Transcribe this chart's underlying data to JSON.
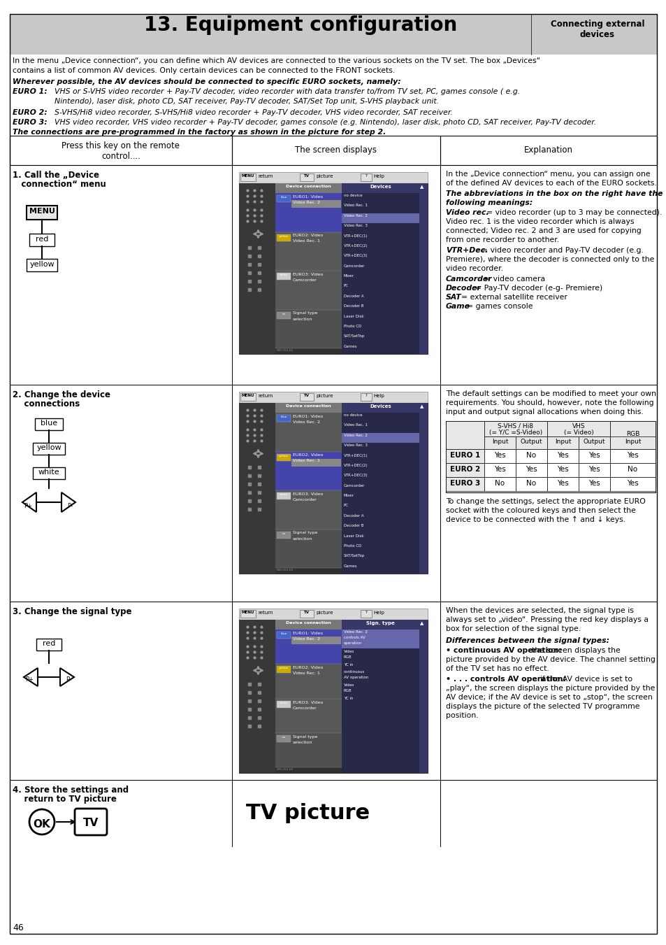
{
  "title": "13. Equipment configuration",
  "subtitle_right": "Connecting external\ndevices",
  "bg_color": "#ffffff",
  "header_bg": "#c8c8c8",
  "intro_text1": "In the menu „Device connection“, you can define which AV devices are connected to the various sockets on the TV set. The box „Devices“",
  "intro_text2": "contains a list of common AV devices. Only certain devices can be connected to the FRONT sockets.",
  "bold_intro": "Wherever possible, the AV devices should be connected to specific EURO sockets, namely:",
  "euro1_label": "EURO 1:",
  "euro1_text1": "VHS or S-VHS video recorder + Pay-TV decoder, video recorder with data transfer to/from TV set, PC, games console ( e.g.",
  "euro1_text2": "Nintendo), laser disk, photo CD, SAT receiver, Pay-TV decoder, SAT/Set Top unit, S-VHS playback unit.",
  "euro2_label": "EURO 2:",
  "euro2_text": "S-VHS/Hi8 video recorder, S-VHS/Hi8 video recorder + Pay-TV decoder, VHS video recorder, SAT receiver.",
  "euro3_label": "EURO 3:",
  "euro3_text": "VHS video recorder, VHS video recorder + Pay-TV decoder, games console (e.g. Nintendo), laser disk, photo CD, SAT receiver, Pay-TV decoder.",
  "bold_connections": "The connections are pre-programmed in the factory as shown in the picture for step 2.",
  "col1_header": "Press this key on the remote\ncontrol....",
  "col2_header": "The screen displays",
  "col3_header": "Explanation",
  "page_number": "46",
  "table_rows": [
    [
      "EURO 1",
      "Yes",
      "No",
      "Yes",
      "Yes",
      "Yes"
    ],
    [
      "EURO 2",
      "Yes",
      "Yes",
      "Yes",
      "Yes",
      "No"
    ],
    [
      "EURO 3",
      "No",
      "No",
      "Yes",
      "Yes",
      "Yes"
    ]
  ],
  "devices_list": [
    "no device",
    "Video Rec. 1",
    "Video Rec. 2",
    "Video Rec. 3",
    "VTR+DEC(1)",
    "VTR+DEC(2)",
    "VTR+DEC(3)",
    "Camcorder",
    "Mixer",
    "PC",
    "Decoder A",
    "Decoder B",
    "Laser Disk",
    "Photo CD",
    "SAT/SetTop",
    "Games"
  ]
}
